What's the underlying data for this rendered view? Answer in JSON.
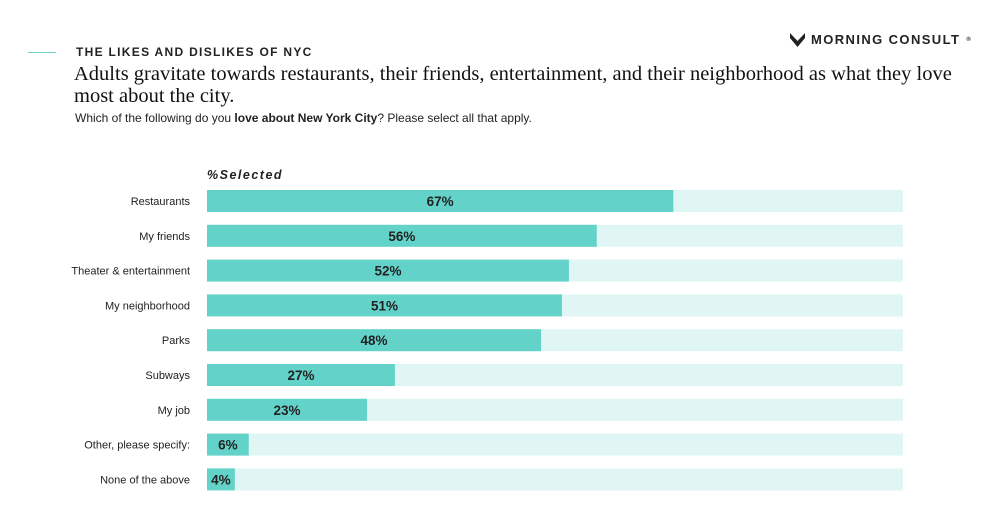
{
  "header": {
    "kicker": "THE LIKES AND DISLIKES OF NYC",
    "brand": "MORNING CONSULT",
    "brand_mark": "®",
    "headline": "Adults gravitate towards restaurants, their friends, entertainment, and their neighborhood as what they love most about the city.",
    "subtitle_pre": "Which of the following do you ",
    "subtitle_bold": "love about New York City",
    "subtitle_post": "? Please select all that apply."
  },
  "chart_data": {
    "type": "bar",
    "orientation": "horizontal",
    "series_label": "%Selected",
    "categories": [
      "Restaurants",
      "My friends",
      "Theater & entertainment",
      "My neighborhood",
      "Parks",
      "Subways",
      "My job",
      "Other, please specify:",
      "None of the above"
    ],
    "values": [
      67,
      56,
      52,
      51,
      48,
      27,
      23,
      6,
      4
    ],
    "data_labels": [
      "67%",
      "56%",
      "52%",
      "51%",
      "48%",
      "27%",
      "23%",
      "6%",
      "4%"
    ],
    "xlim": [
      0,
      100
    ],
    "colors": {
      "bar": "#63d3c9",
      "track": "#e0f6f4"
    }
  }
}
